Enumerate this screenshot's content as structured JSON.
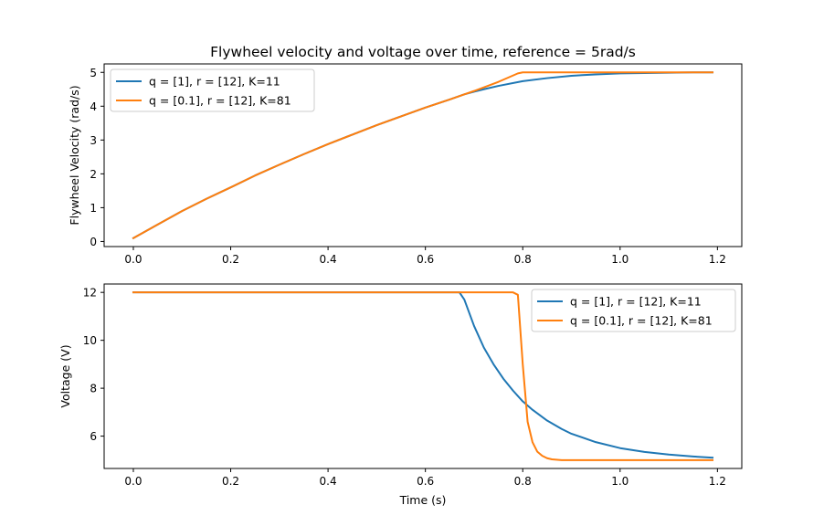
{
  "figure": {
    "title": "Flywheel velocity and voltage over time, reference = 5rad/s"
  },
  "colors": {
    "series1": "#1f77b4",
    "series2": "#ff7f0e",
    "axes": "#000000",
    "background": "#ffffff"
  },
  "chart_data": [
    {
      "type": "line",
      "title": "Flywheel velocity and voltage over time, reference = 5rad/s",
      "xlabel": "",
      "ylabel": "Flywheel Velocity (rad/s)",
      "xlim": [
        -0.06,
        1.25
      ],
      "ylim": [
        -0.15,
        5.25
      ],
      "xticks": [
        0.0,
        0.2,
        0.4,
        0.6,
        0.8,
        1.0,
        1.2
      ],
      "xtick_labels": [
        "0.0",
        "0.2",
        "0.4",
        "0.6",
        "0.8",
        "1.0",
        "1.2"
      ],
      "yticks": [
        0,
        1,
        2,
        3,
        4,
        5
      ],
      "ytick_labels": [
        "0",
        "1",
        "2",
        "3",
        "4",
        "5"
      ],
      "grid": false,
      "legend": "upper left",
      "series": [
        {
          "name": "q = [1], r = [12], K=11",
          "color": "#1f77b4",
          "x": [
            0.0,
            0.05,
            0.1,
            0.15,
            0.2,
            0.25,
            0.3,
            0.35,
            0.4,
            0.45,
            0.5,
            0.55,
            0.6,
            0.65,
            0.68,
            0.7,
            0.72,
            0.75,
            0.8,
            0.85,
            0.9,
            0.95,
            1.0,
            1.05,
            1.1,
            1.15,
            1.19
          ],
          "y": [
            0.1,
            0.5,
            0.9,
            1.26,
            1.6,
            1.95,
            2.27,
            2.58,
            2.88,
            3.16,
            3.44,
            3.7,
            3.96,
            4.2,
            4.35,
            4.43,
            4.5,
            4.6,
            4.74,
            4.83,
            4.9,
            4.94,
            4.97,
            4.98,
            4.99,
            5.0,
            5.0
          ]
        },
        {
          "name": "q = [0.1], r = [12], K=81",
          "color": "#ff7f0e",
          "x": [
            0.0,
            0.05,
            0.1,
            0.15,
            0.2,
            0.25,
            0.3,
            0.35,
            0.4,
            0.45,
            0.5,
            0.55,
            0.6,
            0.65,
            0.7,
            0.75,
            0.79,
            0.8,
            0.85,
            0.9,
            0.95,
            1.0,
            1.05,
            1.1,
            1.15,
            1.19
          ],
          "y": [
            0.1,
            0.5,
            0.9,
            1.26,
            1.6,
            1.95,
            2.27,
            2.58,
            2.88,
            3.16,
            3.44,
            3.7,
            3.96,
            4.2,
            4.45,
            4.72,
            4.97,
            5.0,
            5.0,
            5.0,
            5.0,
            5.0,
            5.0,
            5.0,
            5.0,
            5.0
          ]
        }
      ]
    },
    {
      "type": "line",
      "title": "",
      "xlabel": "Time (s)",
      "ylabel": "Voltage (V)",
      "xlim": [
        -0.06,
        1.25
      ],
      "ylim": [
        4.65,
        12.35
      ],
      "xticks": [
        0.0,
        0.2,
        0.4,
        0.6,
        0.8,
        1.0,
        1.2
      ],
      "xtick_labels": [
        "0.0",
        "0.2",
        "0.4",
        "0.6",
        "0.8",
        "1.0",
        "1.2"
      ],
      "yticks": [
        6,
        8,
        10,
        12
      ],
      "ytick_labels": [
        "6",
        "8",
        "10",
        "12"
      ],
      "grid": false,
      "legend": "upper right",
      "series": [
        {
          "name": "q = [1], r = [12], K=11",
          "color": "#1f77b4",
          "x": [
            0.0,
            0.1,
            0.2,
            0.3,
            0.4,
            0.5,
            0.6,
            0.66,
            0.67,
            0.68,
            0.7,
            0.72,
            0.74,
            0.76,
            0.78,
            0.8,
            0.82,
            0.85,
            0.88,
            0.9,
            0.95,
            1.0,
            1.05,
            1.1,
            1.15,
            1.19
          ],
          "y": [
            12,
            12,
            12,
            12,
            12,
            12,
            12,
            12,
            12,
            11.7,
            10.6,
            9.7,
            9.0,
            8.4,
            7.9,
            7.45,
            7.1,
            6.65,
            6.3,
            6.1,
            5.75,
            5.5,
            5.34,
            5.23,
            5.15,
            5.1
          ]
        },
        {
          "name": "q = [0.1], r = [12], K=81",
          "color": "#ff7f0e",
          "x": [
            0.0,
            0.1,
            0.2,
            0.3,
            0.4,
            0.5,
            0.6,
            0.7,
            0.78,
            0.79,
            0.8,
            0.81,
            0.82,
            0.83,
            0.84,
            0.85,
            0.86,
            0.88,
            0.9,
            0.95,
            1.0,
            1.05,
            1.1,
            1.15,
            1.19
          ],
          "y": [
            12,
            12,
            12,
            12,
            12,
            12,
            12,
            12,
            12,
            11.9,
            9.0,
            6.6,
            5.75,
            5.35,
            5.18,
            5.08,
            5.03,
            5.0,
            5.0,
            5.0,
            5.0,
            5.0,
            5.0,
            5.0,
            5.0
          ]
        }
      ]
    }
  ]
}
